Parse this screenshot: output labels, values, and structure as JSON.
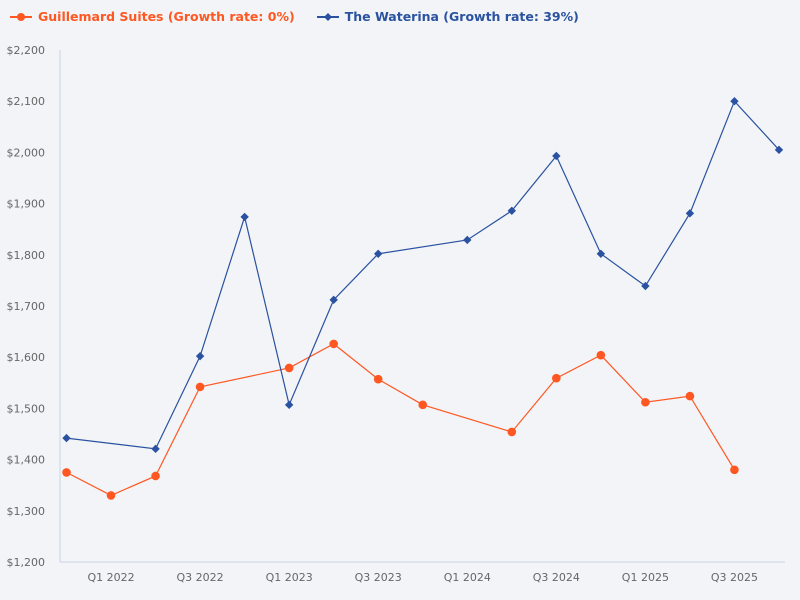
{
  "chart_data": {
    "type": "line",
    "title": "",
    "xlabel": "",
    "ylabel": "",
    "x": [
      "Q4 2021",
      "Q1 2022",
      "Q2 2022",
      "Q3 2022",
      "Q4 2022",
      "Q1 2023",
      "Q2 2023",
      "Q3 2023",
      "Q4 2023",
      "Q1 2024",
      "Q2 2024",
      "Q3 2024",
      "Q4 2024",
      "Q1 2025",
      "Q2 2025",
      "Q3 2025",
      "Q4 2025"
    ],
    "x_tick_labels": [
      "Q1 2022",
      "Q3 2022",
      "Q1 2023",
      "Q3 2023",
      "Q1 2024",
      "Q3 2024",
      "Q1 2025",
      "Q3 2025"
    ],
    "ylim": [
      1200,
      2200
    ],
    "y_ticks": [
      1200,
      1300,
      1400,
      1500,
      1600,
      1700,
      1800,
      1900,
      2000,
      2100,
      2200
    ],
    "y_tick_labels": [
      "$1,200",
      "$1,300",
      "$1,400",
      "$1,500",
      "$1,600",
      "$1,700",
      "$1,800",
      "$1,900",
      "$2,000",
      "$2,100",
      "$2,200"
    ],
    "grid": false,
    "legend_position": "top-left",
    "series": [
      {
        "name": "Guillemard Suites (Growth rate: 0%)",
        "color": "#ff5722",
        "marker": "circle",
        "values": [
          1375,
          1330,
          1368,
          1542,
          null,
          1579,
          1626,
          1557,
          1507,
          null,
          1454,
          1559,
          1604,
          1512,
          1524,
          1380,
          null
        ]
      },
      {
        "name": "The Waterina (Growth rate: 39%)",
        "color": "#2a52a0",
        "marker": "diamond",
        "values": [
          1442,
          null,
          1421,
          1602,
          1874,
          1507,
          1712,
          1802,
          null,
          1829,
          1886,
          1993,
          1802,
          1739,
          1881,
          2100,
          2005
        ]
      }
    ]
  }
}
